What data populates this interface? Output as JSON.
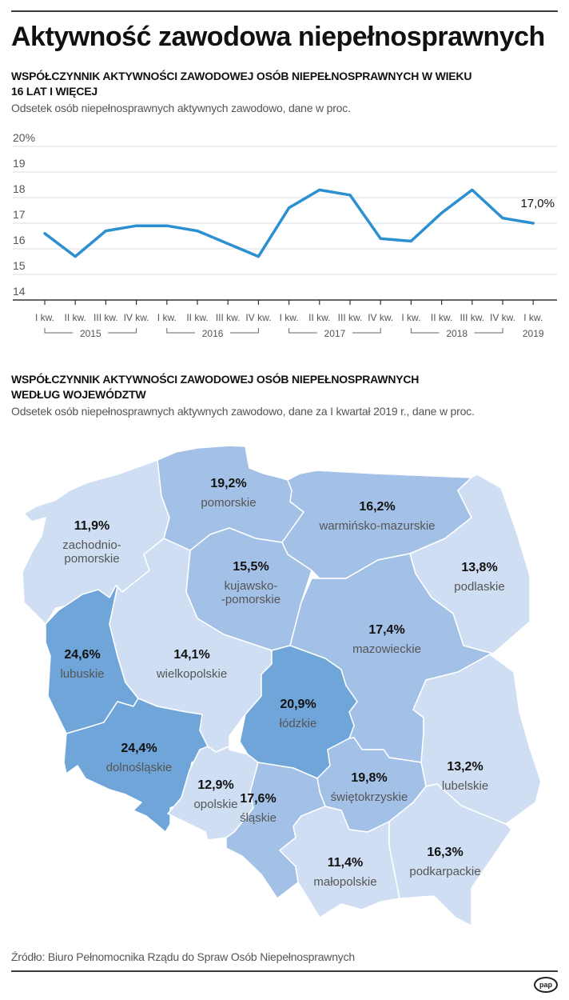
{
  "header": {
    "title": "Aktywność zawodowa niepełnosprawnych"
  },
  "section1": {
    "title_line1": "WSPÓŁCZYNNIK AKTYWNOŚCI ZAWODOWEJ OSÓB NIEPEŁNOSPRAWNYCH W WIEKU",
    "title_line2": "16 LAT I WIĘCEJ",
    "subtitle": "Odsetek osób niepełnosprawnych aktywnych zawodowo, dane w proc."
  },
  "section2": {
    "title_line1": "WSPÓŁCZYNNIK AKTYWNOŚCI ZAWODOWEJ OSÓB NIEPEŁNOSPRAWNYCH",
    "title_line2": "WEDŁUG WOJEWÓDZTW",
    "subtitle": "Odsetek osób niepełnosprawnych aktywnych zawodowo, dane za I kwartał 2019 r., dane w proc."
  },
  "chart_data": [
    {
      "type": "line",
      "title": "Współczynnik aktywności zawodowej osób niepełnosprawnych w wieku 16 lat i więcej",
      "ylabel": "%",
      "ylim": [
        14,
        20
      ],
      "yticks": [
        "14",
        "15",
        "16",
        "17",
        "18",
        "19",
        "20%"
      ],
      "grid": true,
      "line_color": "#2b8fd0",
      "categories": [
        "I kw.",
        "II kw.",
        "III kw.",
        "IV kw.",
        "I kw.",
        "II kw.",
        "III kw.",
        "IV kw.",
        "I kw.",
        "II kw.",
        "III kw.",
        "IV kw.",
        "I kw.",
        "II kw.",
        "III kw.",
        "IV kw.",
        "I kw."
      ],
      "year_groups": [
        {
          "label": "2015",
          "quarters": 4
        },
        {
          "label": "2016",
          "quarters": 4
        },
        {
          "label": "2017",
          "quarters": 4
        },
        {
          "label": "2018",
          "quarters": 4
        },
        {
          "label": "2019",
          "quarters": 1
        }
      ],
      "series": [
        {
          "name": "Współczynnik aktywności zawodowej",
          "values": [
            16.6,
            15.7,
            16.7,
            16.9,
            16.9,
            16.7,
            16.2,
            15.7,
            17.6,
            18.3,
            18.1,
            16.4,
            16.3,
            17.4,
            18.3,
            17.2,
            17.0
          ]
        }
      ],
      "annotations": [
        {
          "point_index": 16,
          "text": "17,0%"
        }
      ]
    },
    {
      "type": "choropleth",
      "title": "Współczynnik aktywności zawodowej osób niepełnosprawnych według województw",
      "period": "I kwartał 2019",
      "colors": {
        "low": "#cfdef2",
        "mid": "#a3c1e6",
        "high": "#6fa5d8"
      },
      "regions": [
        {
          "id": "zachodniopomorskie",
          "name_line1": "zachodnio-",
          "name_line2": "pomorskie",
          "value": 11.9,
          "label": "11,9%",
          "shade": "low"
        },
        {
          "id": "pomorskie",
          "name_line1": "pomorskie",
          "value": 19.2,
          "label": "19,2%",
          "shade": "mid"
        },
        {
          "id": "warminsko-mazurskie",
          "name_line1": "warmińsko-mazurskie",
          "value": 16.2,
          "label": "16,2%",
          "shade": "mid"
        },
        {
          "id": "podlaskie",
          "name_line1": "podlaskie",
          "value": 13.8,
          "label": "13,8%",
          "shade": "low"
        },
        {
          "id": "kujawsko-pomorskie",
          "name_line1": "kujawsko-",
          "name_line2": "-pomorskie",
          "value": 15.5,
          "label": "15,5%",
          "shade": "mid"
        },
        {
          "id": "lubuskie",
          "name_line1": "lubuskie",
          "value": 24.6,
          "label": "24,6%",
          "shade": "high"
        },
        {
          "id": "wielkopolskie",
          "name_line1": "wielkopolskie",
          "value": 14.1,
          "label": "14,1%",
          "shade": "low"
        },
        {
          "id": "mazowieckie",
          "name_line1": "mazowieckie",
          "value": 17.4,
          "label": "17,4%",
          "shade": "mid"
        },
        {
          "id": "lodzkie",
          "name_line1": "łódzkie",
          "value": 20.9,
          "label": "20,9%",
          "shade": "high"
        },
        {
          "id": "dolnoslaskie",
          "name_line1": "dolnośląskie",
          "value": 24.4,
          "label": "24,4%",
          "shade": "high"
        },
        {
          "id": "lubelskie",
          "name_line1": "lubelskie",
          "value": 13.2,
          "label": "13,2%",
          "shade": "low"
        },
        {
          "id": "opolskie",
          "name_line1": "opolskie",
          "value": 12.9,
          "label": "12,9%",
          "shade": "low"
        },
        {
          "id": "swietokrzyskie",
          "name_line1": "świętokrzyskie",
          "value": 19.8,
          "label": "19,8%",
          "shade": "mid"
        },
        {
          "id": "slaskie",
          "name_line1": "śląskie",
          "value": 17.6,
          "label": "17,6%",
          "shade": "mid"
        },
        {
          "id": "malopolskie",
          "name_line1": "małopolskie",
          "value": 11.4,
          "label": "11,4%",
          "shade": "low"
        },
        {
          "id": "podkarpackie",
          "name_line1": "podkarpackie",
          "value": 16.3,
          "label": "16,3%",
          "shade": "low"
        }
      ]
    }
  ],
  "footer": {
    "source": "Źródło: Biuro Pełnomocnika Rządu do Spraw Osób Niepełnosprawnych",
    "logo": "pap"
  }
}
